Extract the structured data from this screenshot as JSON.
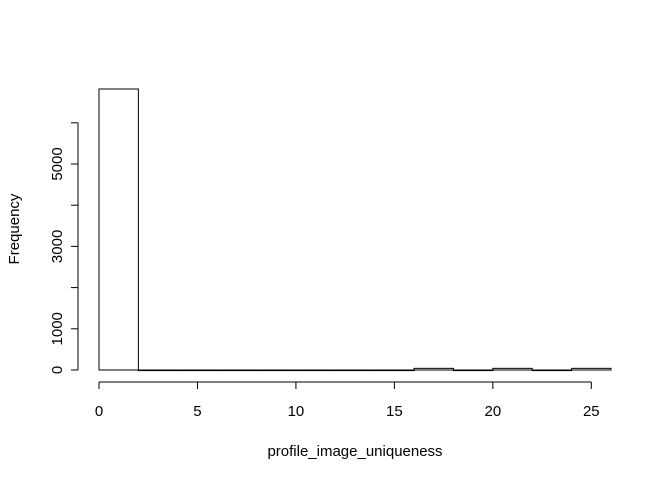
{
  "chart_data": {
    "type": "bar",
    "subtype": "histogram",
    "title": "",
    "xlabel": "profile_image_uniqueness",
    "ylabel": "Frequency",
    "bin_edges": [
      0,
      2,
      4,
      6,
      8,
      10,
      12,
      14,
      16,
      18,
      20,
      22,
      24,
      26
    ],
    "values": [
      6820,
      0,
      0,
      0,
      0,
      0,
      0,
      0,
      40,
      0,
      40,
      0,
      40
    ],
    "xlim": [
      0,
      26
    ],
    "ylim": [
      0,
      6820
    ],
    "x_ticks": [
      0,
      5,
      10,
      15,
      20,
      25
    ],
    "x_tick_labels": [
      "0",
      "5",
      "10",
      "15",
      "20",
      "25"
    ],
    "y_ticks": [
      0,
      1000,
      2000,
      3000,
      4000,
      5000,
      6000
    ],
    "y_tick_labels": [
      "0",
      "1000",
      "",
      "3000",
      "",
      "5000",
      ""
    ],
    "grid": false,
    "legend": "none",
    "bar_fill": "#ffffff",
    "bar_stroke": "#000000"
  }
}
